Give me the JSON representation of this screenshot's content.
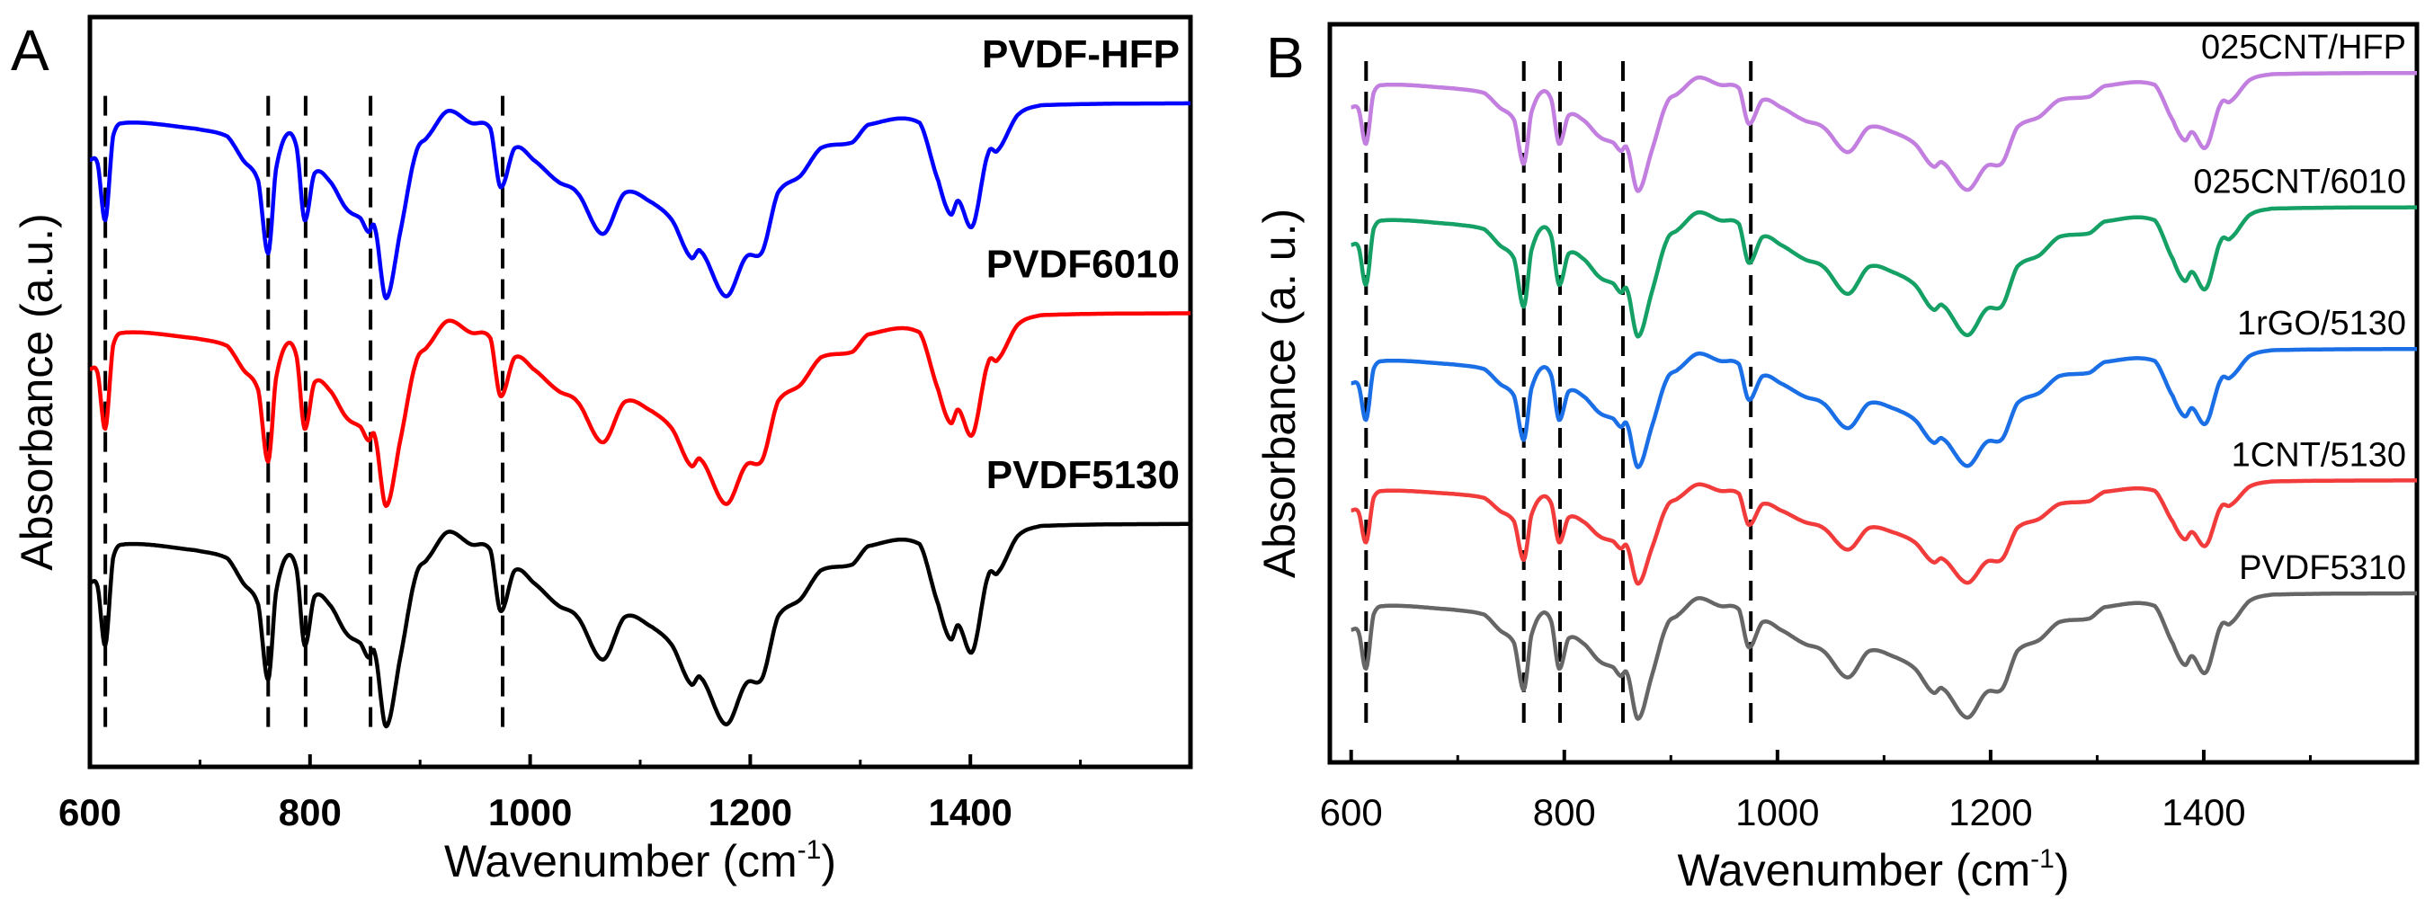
{
  "chart_data": [
    {
      "type": "line",
      "panel_label": "A",
      "title": "",
      "xlabel": "Wavenumber (cm",
      "xlabel_sup": "-1",
      "xlabel_close": ")",
      "ylabel": "Absorbance (a.u.)",
      "xlim": [
        600,
        1600
      ],
      "ylim": [
        0,
        1
      ],
      "xticks": [
        600,
        800,
        1000,
        1200,
        1400
      ],
      "xtick_labels": [
        "600",
        "800",
        "1000",
        "1200",
        "1400"
      ],
      "minor_xticks": [
        700,
        900,
        1100,
        1300,
        1500
      ],
      "grid": false,
      "reference_lines": [
        614,
        762,
        796,
        855,
        975
      ],
      "series": [
        {
          "name": "PVDF-HFP",
          "color": "#0000ff",
          "offset": 0.885,
          "scale": 0.26
        },
        {
          "name": "PVDF6010",
          "color": "#ff0000",
          "offset": 0.605,
          "scale": 0.257
        },
        {
          "name": "PVDF5130",
          "color": "#000000",
          "offset": 0.324,
          "scale": 0.27
        }
      ]
    },
    {
      "type": "line",
      "panel_label": "B",
      "title": "",
      "xlabel": "Wavenumber (cm",
      "xlabel_sup": "-1",
      "xlabel_close": ")",
      "ylabel": "Absorbance (a. u.)",
      "xlim": [
        580,
        1600
      ],
      "ylim": [
        0,
        1
      ],
      "xticks": [
        600,
        800,
        1000,
        1200,
        1400
      ],
      "xtick_labels": [
        "600",
        "800",
        "1000",
        "1200",
        "1400"
      ],
      "minor_xticks": [
        700,
        900,
        1100,
        1300,
        1500
      ],
      "grid": false,
      "reference_lines": [
        614,
        762,
        796,
        855,
        975
      ],
      "series": [
        {
          "name": "025CNT/HFP",
          "color": "#c27fe0",
          "offset": 0.934,
          "scale": 0.16
        },
        {
          "name": "025CNT/6010",
          "color": "#15a065",
          "offset": 0.752,
          "scale": 0.175
        },
        {
          "name": "1rGO/5130",
          "color": "#1a6fe6",
          "offset": 0.56,
          "scale": 0.16
        },
        {
          "name": "1CNT/5130",
          "color": "#f23b3b",
          "offset": 0.382,
          "scale": 0.14
        },
        {
          "name": "PVDF5310",
          "color": "#666666",
          "offset": 0.229,
          "scale": 0.17
        }
      ]
    }
  ],
  "spectral_profile": {
    "x": [
      600,
      607,
      614,
      621,
      632,
      696,
      725,
      739,
      753,
      762,
      769,
      779,
      788,
      795,
      804,
      818,
      833,
      846,
      853,
      859,
      869,
      882,
      896,
      907,
      925,
      946,
      964,
      973,
      986,
      1003,
      1025,
      1043,
      1066,
      1086,
      1111,
      1129,
      1146,
      1155,
      1178,
      1196,
      1211,
      1225,
      1246,
      1264,
      1293,
      1307,
      1354,
      1371,
      1382,
      1389,
      1402,
      1416,
      1425,
      1443,
      1464,
      1600
    ],
    "y": [
      0.71,
      0.69,
      0.4,
      0.83,
      0.9,
      0.87,
      0.83,
      0.71,
      0.6,
      0.23,
      0.66,
      0.84,
      0.77,
      0.4,
      0.64,
      0.6,
      0.46,
      0.41,
      0.34,
      0.36,
      0.0,
      0.34,
      0.74,
      0.83,
      0.96,
      0.9,
      0.87,
      0.57,
      0.77,
      0.71,
      0.6,
      0.54,
      0.33,
      0.54,
      0.49,
      0.4,
      0.21,
      0.24,
      0.01,
      0.21,
      0.24,
      0.54,
      0.63,
      0.77,
      0.8,
      0.89,
      0.9,
      0.6,
      0.43,
      0.5,
      0.37,
      0.74,
      0.76,
      0.94,
      0.99,
      1.0
    ]
  }
}
